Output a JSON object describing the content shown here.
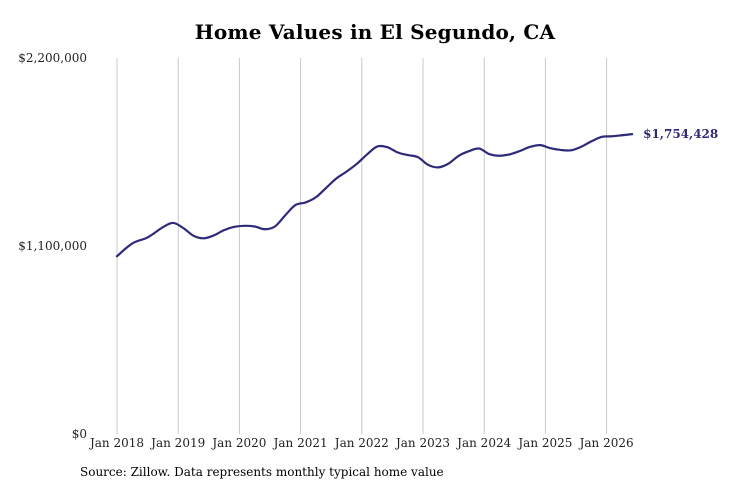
{
  "chart_data": {
    "type": "line",
    "title": "Home Values in El Segundo, CA",
    "xlabel": "",
    "ylabel": "",
    "x_ticks": [
      "Jan 2018",
      "Jan 2019",
      "Jan 2020",
      "Jan 2021",
      "Jan 2022",
      "Jan 2023",
      "Jan 2024",
      "Jan 2025",
      "Jan 2026"
    ],
    "y_ticks": [
      "$0",
      "$1,100,000",
      "$2,200,000"
    ],
    "ylim": [
      0,
      2200000
    ],
    "xlim": [
      "2017-12",
      "2026-10"
    ],
    "grid": "vertical",
    "line_color": "#2e2a7a",
    "end_label": "$1,754,428",
    "series": [
      {
        "points": [
          [
            "2018-01",
            1040000
          ],
          [
            "2018-04",
            1115000
          ],
          [
            "2018-07",
            1150000
          ],
          [
            "2018-10",
            1210000
          ],
          [
            "2018-12",
            1235000
          ],
          [
            "2019-02",
            1205000
          ],
          [
            "2019-04",
            1160000
          ],
          [
            "2019-06",
            1145000
          ],
          [
            "2019-08",
            1162000
          ],
          [
            "2019-10",
            1193000
          ],
          [
            "2019-12",
            1212000
          ],
          [
            "2020-02",
            1218000
          ],
          [
            "2020-04",
            1214000
          ],
          [
            "2020-06",
            1198000
          ],
          [
            "2020-08",
            1215000
          ],
          [
            "2020-10",
            1280000
          ],
          [
            "2020-12",
            1340000
          ],
          [
            "2021-02",
            1355000
          ],
          [
            "2021-04",
            1385000
          ],
          [
            "2021-06",
            1440000
          ],
          [
            "2021-08",
            1495000
          ],
          [
            "2021-10",
            1535000
          ],
          [
            "2021-12",
            1580000
          ],
          [
            "2022-02",
            1635000
          ],
          [
            "2022-04",
            1682000
          ],
          [
            "2022-06",
            1678000
          ],
          [
            "2022-08",
            1648000
          ],
          [
            "2022-10",
            1632000
          ],
          [
            "2022-12",
            1620000
          ],
          [
            "2023-02",
            1575000
          ],
          [
            "2023-04",
            1560000
          ],
          [
            "2023-06",
            1582000
          ],
          [
            "2023-08",
            1628000
          ],
          [
            "2023-10",
            1655000
          ],
          [
            "2023-12",
            1670000
          ],
          [
            "2024-02",
            1638000
          ],
          [
            "2024-04",
            1628000
          ],
          [
            "2024-06",
            1636000
          ],
          [
            "2024-08",
            1656000
          ],
          [
            "2024-10",
            1680000
          ],
          [
            "2024-12",
            1690000
          ],
          [
            "2025-02",
            1672000
          ],
          [
            "2025-04",
            1662000
          ],
          [
            "2025-06",
            1660000
          ],
          [
            "2025-08",
            1680000
          ],
          [
            "2025-10",
            1712000
          ],
          [
            "2025-12",
            1738000
          ],
          [
            "2026-02",
            1742000
          ],
          [
            "2026-04",
            1748000
          ],
          [
            "2026-06",
            1754428
          ]
        ]
      }
    ]
  },
  "source_note": "Source: Zillow. Data represents monthly typical home value"
}
